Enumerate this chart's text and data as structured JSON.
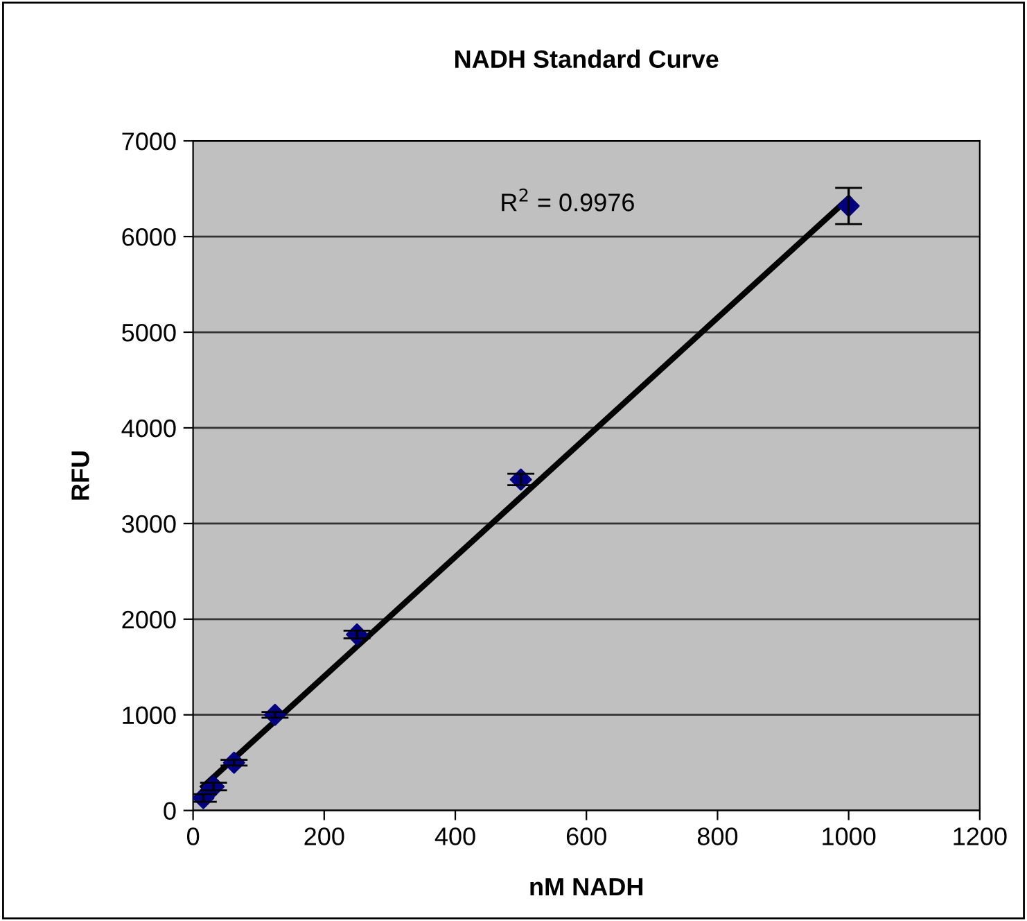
{
  "chart_data": {
    "type": "scatter",
    "title": "NADH Standard Curve",
    "xlabel": "nM NADH",
    "ylabel": "RFU",
    "xlim": [
      0,
      1200
    ],
    "xticks": [
      0,
      200,
      400,
      600,
      800,
      1000,
      1200
    ],
    "ylim": [
      0,
      7000
    ],
    "yticks": [
      0,
      1000,
      2000,
      3000,
      4000,
      5000,
      6000,
      7000
    ],
    "grid": "y",
    "legend": false,
    "marker": "diamond",
    "series": [
      {
        "color": "#000080",
        "x": [
          15.6,
          31.25,
          62.5,
          125,
          250,
          500,
          1000
        ],
        "values": [
          130,
          250,
          500,
          1000,
          1840,
          3460,
          6320
        ],
        "errors": [
          40,
          40,
          30,
          30,
          40,
          60,
          190
        ]
      },
      {
        "type": "line",
        "color": "#000000",
        "x": [
          15.6,
          1000
        ],
        "values": [
          250,
          6400
        ],
        "marker": "none",
        "line_style": "solid"
      }
    ],
    "annotations": [
      "R$^{2}$ = 0.9976"
    ]
  }
}
